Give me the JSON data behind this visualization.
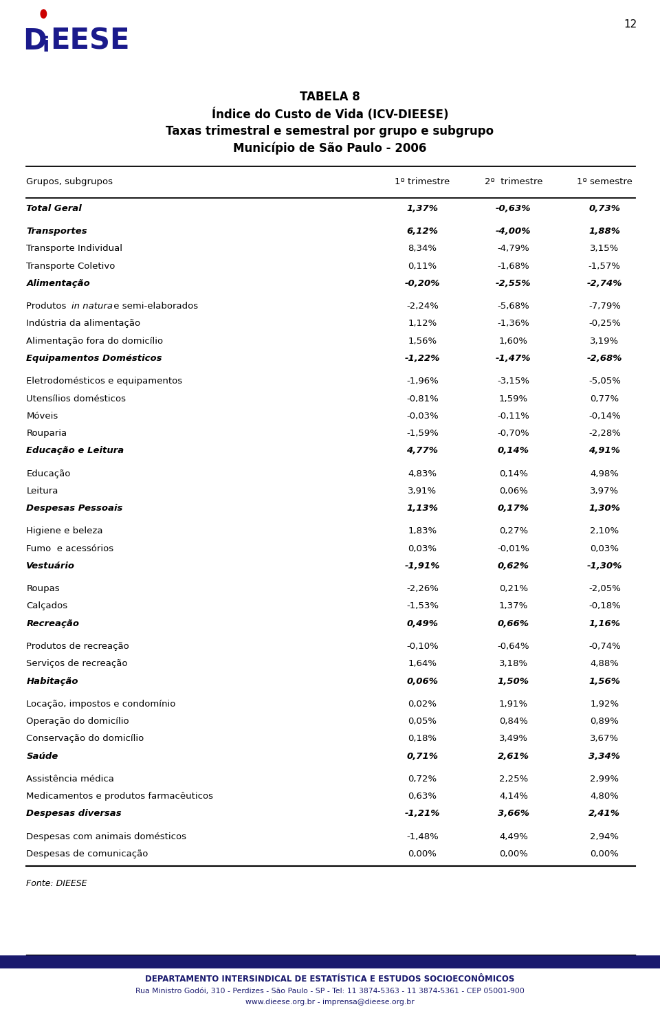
{
  "title_lines": [
    "TABELA 8",
    "Índice do Custo de Vida (ICV-DIEESE)",
    "Taxas trimestral e semestral por grupo e subgrupo",
    "Município de São Paulo - 2006"
  ],
  "header": [
    "Grupos, subgrupos",
    "1º trimestre",
    "2º  trimestre",
    "1º semestre"
  ],
  "rows": [
    {
      "label": "Total Geral",
      "v1": "1,37%",
      "v2": "-0,63%",
      "v3": "0,73%",
      "bold": true,
      "italic": true,
      "spacer_before": true
    },
    {
      "label": "Transportes",
      "v1": "6,12%",
      "v2": "-4,00%",
      "v3": "1,88%",
      "bold": true,
      "italic": true,
      "spacer_before": true
    },
    {
      "label": "Transporte Individual",
      "v1": "8,34%",
      "v2": "-4,79%",
      "v3": "3,15%",
      "bold": false,
      "italic": false,
      "spacer_before": false
    },
    {
      "label": "Transporte Coletivo",
      "v1": "0,11%",
      "v2": "-1,68%",
      "v3": "-1,57%",
      "bold": false,
      "italic": false,
      "spacer_before": false
    },
    {
      "label": "Alimentação",
      "v1": "-0,20%",
      "v2": "-2,55%",
      "v3": "-2,74%",
      "bold": true,
      "italic": true,
      "spacer_before": false
    },
    {
      "label": "Produtos in natura e semi-elaborados",
      "v1": "-2,24%",
      "v2": "-5,68%",
      "v3": "-7,79%",
      "bold": false,
      "italic": false,
      "spacer_before": true,
      "has_italic_part": true
    },
    {
      "label": "Indústria da alimentação",
      "v1": "1,12%",
      "v2": "-1,36%",
      "v3": "-0,25%",
      "bold": false,
      "italic": false,
      "spacer_before": false
    },
    {
      "label": "Alimentação fora do domicílio",
      "v1": "1,56%",
      "v2": "1,60%",
      "v3": "3,19%",
      "bold": false,
      "italic": false,
      "spacer_before": false
    },
    {
      "label": "Equipamentos Domésticos",
      "v1": "-1,22%",
      "v2": "-1,47%",
      "v3": "-2,68%",
      "bold": true,
      "italic": true,
      "spacer_before": false
    },
    {
      "label": "Eletrodomésticos e equipamentos",
      "v1": "-1,96%",
      "v2": "-3,15%",
      "v3": "-5,05%",
      "bold": false,
      "italic": false,
      "spacer_before": true
    },
    {
      "label": "Utensílios domésticos",
      "v1": "-0,81%",
      "v2": "1,59%",
      "v3": "0,77%",
      "bold": false,
      "italic": false,
      "spacer_before": false
    },
    {
      "label": "Móveis",
      "v1": "-0,03%",
      "v2": "-0,11%",
      "v3": "-0,14%",
      "bold": false,
      "italic": false,
      "spacer_before": false
    },
    {
      "label": "Rouparia",
      "v1": "-1,59%",
      "v2": "-0,70%",
      "v3": "-2,28%",
      "bold": false,
      "italic": false,
      "spacer_before": false
    },
    {
      "label": "Educação e Leitura",
      "v1": "4,77%",
      "v2": "0,14%",
      "v3": "4,91%",
      "bold": true,
      "italic": true,
      "spacer_before": false
    },
    {
      "label": "Educação",
      "v1": "4,83%",
      "v2": "0,14%",
      "v3": "4,98%",
      "bold": false,
      "italic": false,
      "spacer_before": true
    },
    {
      "label": "Leitura",
      "v1": "3,91%",
      "v2": "0,06%",
      "v3": "3,97%",
      "bold": false,
      "italic": false,
      "spacer_before": false
    },
    {
      "label": "Despesas Pessoais",
      "v1": "1,13%",
      "v2": "0,17%",
      "v3": "1,30%",
      "bold": true,
      "italic": true,
      "spacer_before": false
    },
    {
      "label": "Higiene e beleza",
      "v1": "1,83%",
      "v2": "0,27%",
      "v3": "2,10%",
      "bold": false,
      "italic": false,
      "spacer_before": true
    },
    {
      "label": "Fumo  e acessórios",
      "v1": "0,03%",
      "v2": "-0,01%",
      "v3": "0,03%",
      "bold": false,
      "italic": false,
      "spacer_before": false
    },
    {
      "label": "Vestuário",
      "v1": "-1,91%",
      "v2": "0,62%",
      "v3": "-1,30%",
      "bold": true,
      "italic": true,
      "spacer_before": false
    },
    {
      "label": "Roupas",
      "v1": "-2,26%",
      "v2": "0,21%",
      "v3": "-2,05%",
      "bold": false,
      "italic": false,
      "spacer_before": true
    },
    {
      "label": "Calçados",
      "v1": "-1,53%",
      "v2": "1,37%",
      "v3": "-0,18%",
      "bold": false,
      "italic": false,
      "spacer_before": false
    },
    {
      "label": "Recreação",
      "v1": "0,49%",
      "v2": "0,66%",
      "v3": "1,16%",
      "bold": true,
      "italic": true,
      "spacer_before": false
    },
    {
      "label": "Produtos de recreação",
      "v1": "-0,10%",
      "v2": "-0,64%",
      "v3": "-0,74%",
      "bold": false,
      "italic": false,
      "spacer_before": true
    },
    {
      "label": "Serviços de recreação",
      "v1": "1,64%",
      "v2": "3,18%",
      "v3": "4,88%",
      "bold": false,
      "italic": false,
      "spacer_before": false
    },
    {
      "label": "Habitação",
      "v1": "0,06%",
      "v2": "1,50%",
      "v3": "1,56%",
      "bold": true,
      "italic": true,
      "spacer_before": false
    },
    {
      "label": "Locação, impostos e condomínio",
      "v1": "0,02%",
      "v2": "1,91%",
      "v3": "1,92%",
      "bold": false,
      "italic": false,
      "spacer_before": true
    },
    {
      "label": "Operação do domicílio",
      "v1": "0,05%",
      "v2": "0,84%",
      "v3": "0,89%",
      "bold": false,
      "italic": false,
      "spacer_before": false
    },
    {
      "label": "Conservação do domicílio",
      "v1": "0,18%",
      "v2": "3,49%",
      "v3": "3,67%",
      "bold": false,
      "italic": false,
      "spacer_before": false
    },
    {
      "label": "Saúde",
      "v1": "0,71%",
      "v2": "2,61%",
      "v3": "3,34%",
      "bold": true,
      "italic": true,
      "spacer_before": false
    },
    {
      "label": "Assistência médica",
      "v1": "0,72%",
      "v2": "2,25%",
      "v3": "2,99%",
      "bold": false,
      "italic": false,
      "spacer_before": true
    },
    {
      "label": "Medicamentos e produtos farmacêuticos",
      "v1": "0,63%",
      "v2": "4,14%",
      "v3": "4,80%",
      "bold": false,
      "italic": false,
      "spacer_before": false
    },
    {
      "label": "Despesas diversas",
      "v1": "-1,21%",
      "v2": "3,66%",
      "v3": "2,41%",
      "bold": true,
      "italic": true,
      "spacer_before": false
    },
    {
      "label": "Despesas com animais domésticos",
      "v1": "-1,48%",
      "v2": "4,49%",
      "v3": "2,94%",
      "bold": false,
      "italic": false,
      "spacer_before": true
    },
    {
      "label": "Despesas de comunicação",
      "v1": "0,00%",
      "v2": "0,00%",
      "v3": "0,00%",
      "bold": false,
      "italic": false,
      "spacer_before": false
    }
  ],
  "fonte": "Fonte: DIEESE",
  "footer_line1": "DEPARTAMENTO INTERSINDICAL DE ESTATÍSTICA E ESTUDOS SOCIOECONÔMICOS",
  "footer_line2": "Rua Ministro Godói, 310 - Perdizes - São Paulo - SP - Tel: 11 3874-5363 - 11 3874-5361 - CEP 05001-900",
  "footer_line3": "www.dieese.org.br - imprensa@dieese.org.br",
  "page_number": "12",
  "bg_color": "#ffffff",
  "text_color": "#000000",
  "footer_bar_color": "#1a1a6e",
  "logo_color": "#1a1a8c",
  "logo_dot_color": "#cc0000"
}
